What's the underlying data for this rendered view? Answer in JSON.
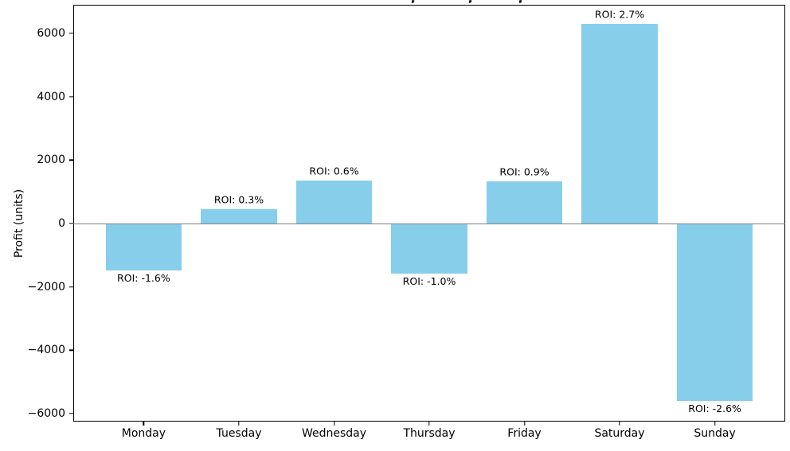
{
  "chart_data": {
    "type": "bar",
    "title": "",
    "title_clipped": true,
    "xlabel": "",
    "ylabel": "Profit (units)",
    "categories": [
      "Monday",
      "Tuesday",
      "Wednesday",
      "Thursday",
      "Friday",
      "Saturday",
      "Sunday"
    ],
    "series": [
      {
        "name": "Profit",
        "values": [
          -1480,
          450,
          1355,
          -1580,
          1330,
          6300,
          -5600
        ]
      }
    ],
    "values": [
      -1480,
      450,
      1355,
      -1580,
      1330,
      6300,
      -5600
    ],
    "annotations": [
      "ROI: -1.6%",
      "ROI: 0.3%",
      "ROI: 0.6%",
      "ROI: -1.0%",
      "ROI: 0.9%",
      "ROI: 2.7%",
      "ROI: -2.6%"
    ],
    "y_ticks": [
      -6000,
      -4000,
      -2000,
      0,
      2000,
      4000,
      6000
    ],
    "y_tick_labels": [
      "−6000",
      "−4000",
      "−2000",
      "0",
      "2000",
      "4000",
      "6000"
    ],
    "ylim": [
      -6247.5,
      6897.5
    ],
    "xlim": [
      -0.74,
      6.74
    ],
    "bar_width": 0.8,
    "grid": false,
    "legend": false,
    "zero_line": true,
    "colors": {
      "bar": "#87ceeb",
      "zero_line": "#808080",
      "spine": "#000000",
      "text": "#000000",
      "background": "#ffffff"
    }
  }
}
